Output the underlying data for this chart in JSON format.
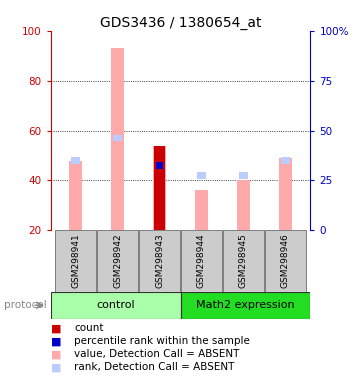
{
  "title": "GDS3436 / 1380654_at",
  "samples": [
    "GSM298941",
    "GSM298942",
    "GSM298943",
    "GSM298944",
    "GSM298945",
    "GSM298946"
  ],
  "groups": [
    {
      "name": "control",
      "color": "#aaffaa",
      "count": 3
    },
    {
      "name": "Math2 expression",
      "color": "#22dd22",
      "count": 3
    }
  ],
  "value_absent": [
    48,
    93,
    54,
    36,
    40,
    49
  ],
  "rank_absent": [
    48,
    57,
    46,
    42,
    42,
    48
  ],
  "count_present": [
    0,
    0,
    54,
    0,
    0,
    0
  ],
  "percentile_rank_present": [
    0,
    0,
    46,
    0,
    0,
    0
  ],
  "ylim_left": [
    20,
    100
  ],
  "ylim_right": [
    0,
    100
  ],
  "yticks_left": [
    20,
    40,
    60,
    80,
    100
  ],
  "yticks_right": [
    0,
    25,
    50,
    75,
    100
  ],
  "ytick_labels_right": [
    "0",
    "25",
    "50",
    "75",
    "100%"
  ],
  "color_value_absent": "#ffaaaa",
  "color_rank_absent": "#bbccff",
  "color_count": "#cc0000",
  "color_percentile": "#0000cc",
  "left_axis_color": "#cc0000",
  "right_axis_color": "#0000bb",
  "group_bg_color": "#cccccc",
  "title_fontsize": 10
}
